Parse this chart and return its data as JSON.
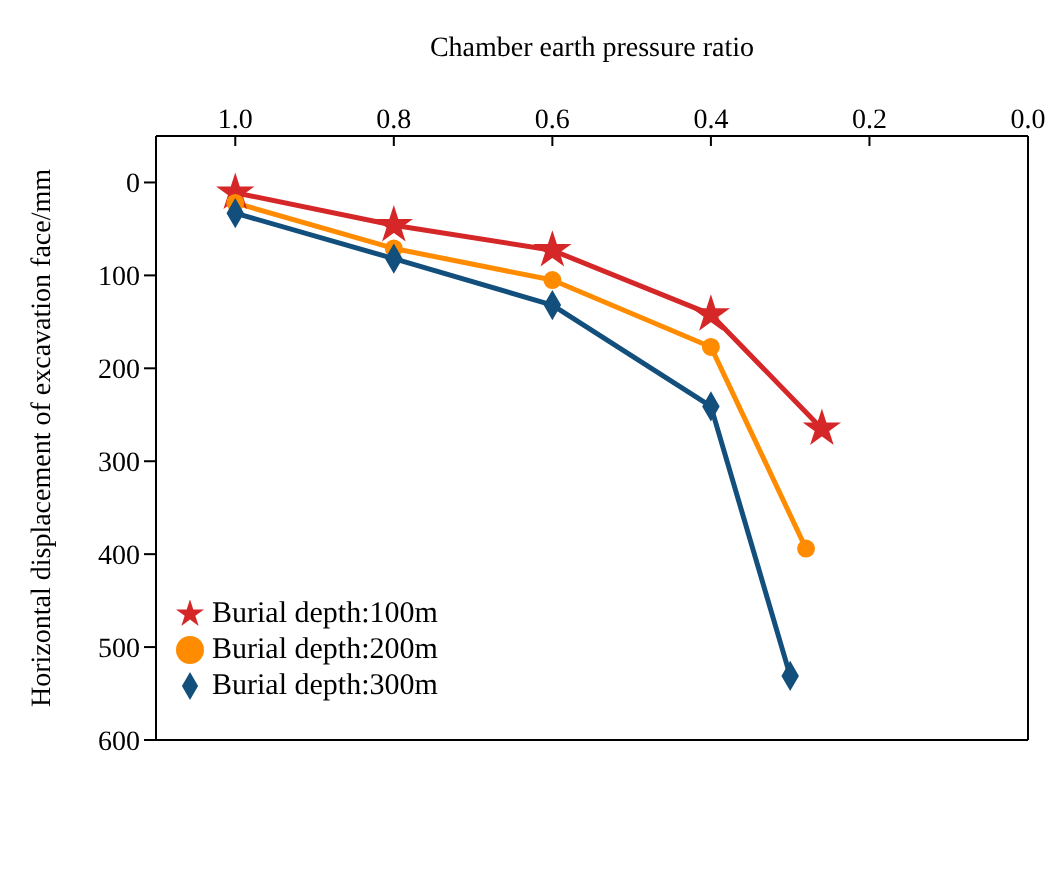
{
  "chart_data": {
    "type": "line",
    "xlabel": "Chamber earth pressure ratio",
    "ylabel": "Horizontal displacement of excavation face/mm",
    "xlim": [
      1.1,
      0
    ],
    "xticks": [
      {
        "value": 1.0,
        "label": "1.0"
      },
      {
        "value": 0.8,
        "label": "0.8"
      },
      {
        "value": 0.6,
        "label": "0.6"
      },
      {
        "value": 0.4,
        "label": "0.4"
      },
      {
        "value": 0.2,
        "label": "0.2"
      },
      {
        "value": 0,
        "label": "0.0"
      }
    ],
    "ylim": [
      600,
      -50
    ],
    "yticks": [
      0,
      100,
      200,
      300,
      400,
      500,
      600
    ],
    "legend": "bottom left",
    "line_style": "solid",
    "series": [
      {
        "name": "Burial depth:100m",
        "color": "#d62728",
        "marker": "star",
        "x": [
          1.0,
          0.8,
          0.6,
          0.4,
          0.26
        ],
        "values": [
          11,
          46,
          73,
          142,
          265
        ]
      },
      {
        "name": "Burial depth:200m",
        "color": "#ff8c00",
        "marker": "circle",
        "x": [
          1.0,
          0.8,
          0.6,
          0.4,
          0.28
        ],
        "values": [
          22,
          71,
          105,
          177,
          394
        ]
      },
      {
        "name": "Burial depth:300m",
        "color": "#134f7c",
        "marker": "diamond",
        "x": [
          1.0,
          0.8,
          0.6,
          0.4,
          0.3
        ],
        "values": [
          33,
          82,
          132,
          241,
          531
        ]
      }
    ]
  }
}
